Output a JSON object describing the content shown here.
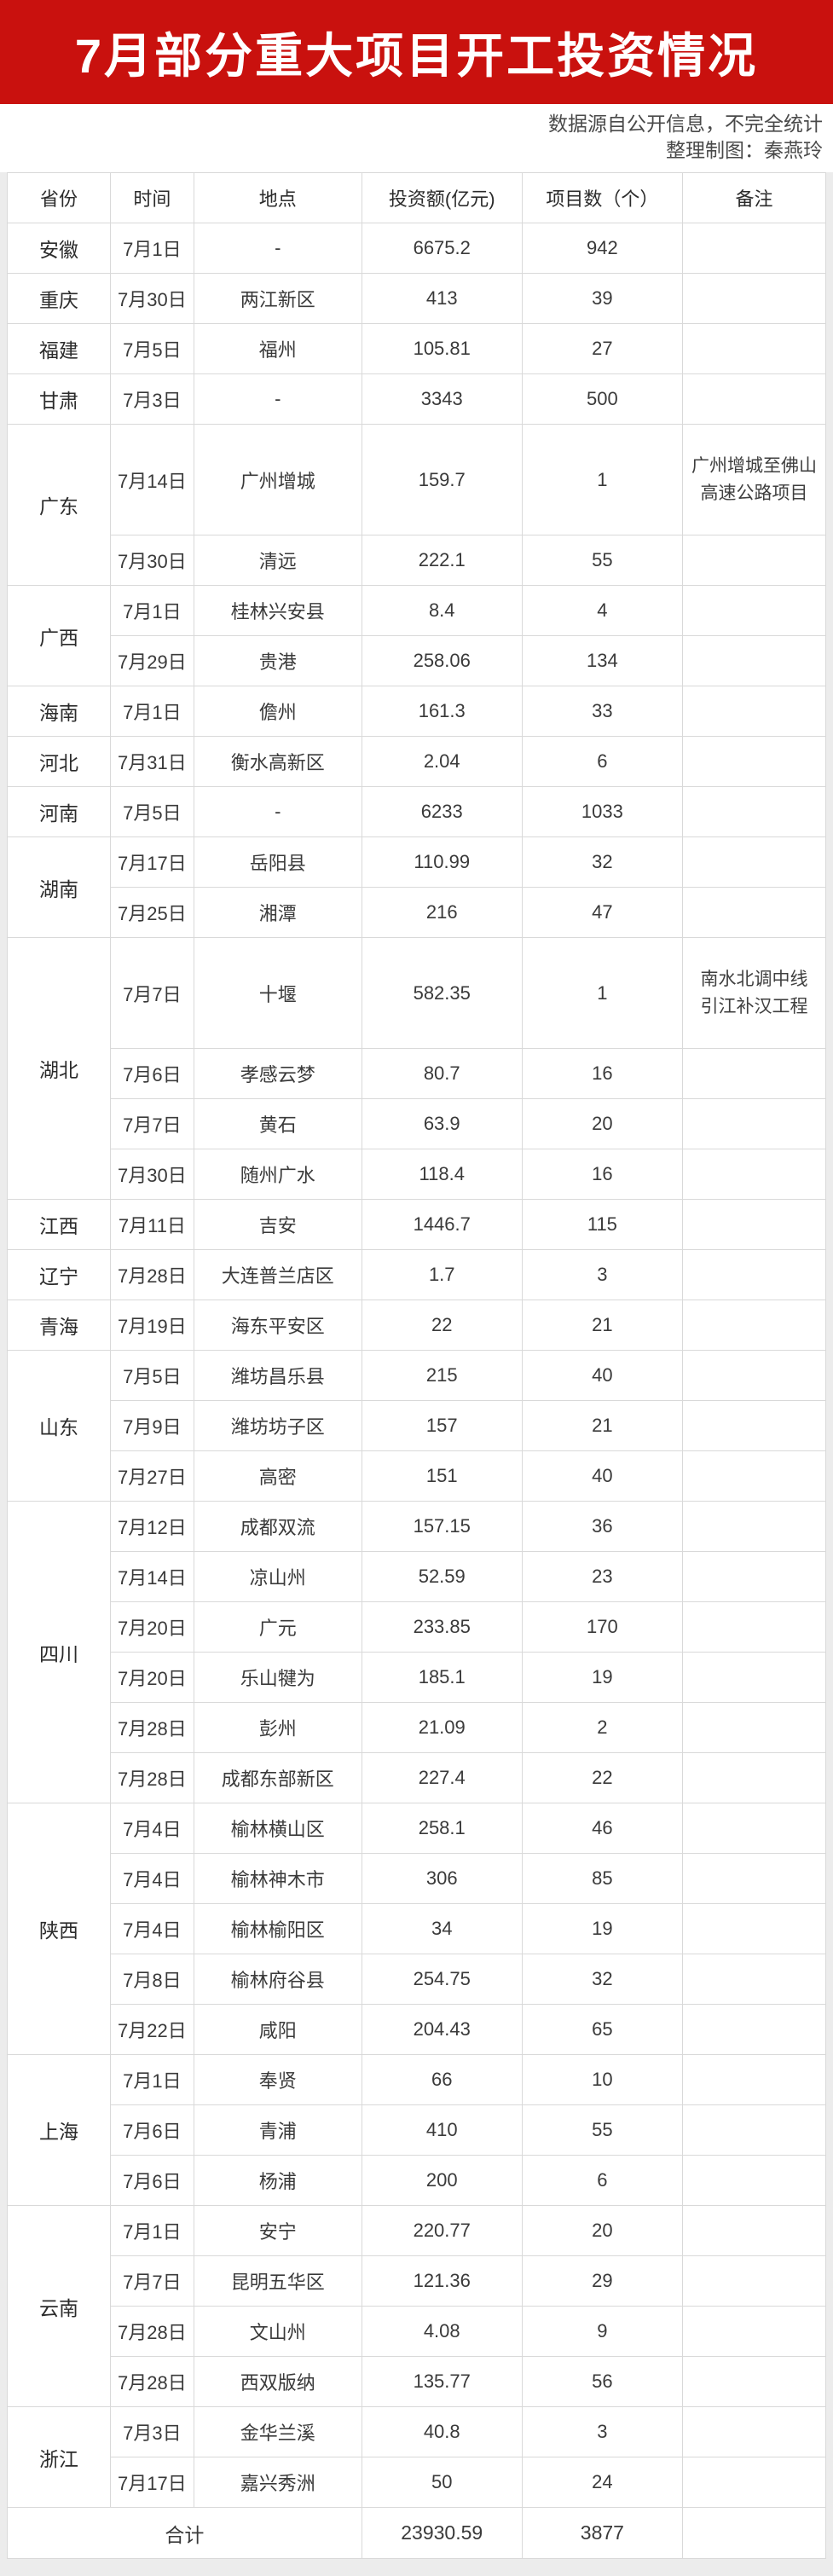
{
  "page": {
    "accent_red": "#c9110e",
    "page_background": "#ececec"
  },
  "banner": {
    "title": "7月部分重大项目开工投资情况"
  },
  "meta": {
    "source_note": "数据源自公开信息，不完全统计",
    "credit_note": "整理制图：秦燕玲"
  },
  "chart_data": {
    "type": "table",
    "title": "7月部分重大项目开工投资情况",
    "columns": [
      "省份",
      "时间",
      "地点",
      "投资额(亿元)",
      "项目数（个）",
      "备注"
    ],
    "groups": [
      {
        "province": "安徽",
        "rows": [
          {
            "date": "7月1日",
            "place": "-",
            "amount": "6675.2",
            "count": "942",
            "note": ""
          }
        ]
      },
      {
        "province": "重庆",
        "rows": [
          {
            "date": "7月30日",
            "place": "两江新区",
            "amount": "413",
            "count": "39",
            "note": ""
          }
        ]
      },
      {
        "province": "福建",
        "rows": [
          {
            "date": "7月5日",
            "place": "福州",
            "amount": "105.81",
            "count": "27",
            "note": ""
          }
        ]
      },
      {
        "province": "甘肃",
        "rows": [
          {
            "date": "7月3日",
            "place": "-",
            "amount": "3343",
            "count": "500",
            "note": ""
          }
        ]
      },
      {
        "province": "广东",
        "rows": [
          {
            "date": "7月14日",
            "place": "广州增城",
            "amount": "159.7",
            "count": "1",
            "note": "广州增城至佛山\n高速公路项目",
            "tall": true
          },
          {
            "date": "7月30日",
            "place": "清远",
            "amount": "222.1",
            "count": "55",
            "note": ""
          }
        ]
      },
      {
        "province": "广西",
        "rows": [
          {
            "date": "7月1日",
            "place": "桂林兴安县",
            "amount": "8.4",
            "count": "4",
            "note": ""
          },
          {
            "date": "7月29日",
            "place": "贵港",
            "amount": "258.06",
            "count": "134",
            "note": ""
          }
        ]
      },
      {
        "province": "海南",
        "rows": [
          {
            "date": "7月1日",
            "place": "儋州",
            "amount": "161.3",
            "count": "33",
            "note": ""
          }
        ]
      },
      {
        "province": "河北",
        "rows": [
          {
            "date": "7月31日",
            "place": "衡水高新区",
            "amount": "2.04",
            "count": "6",
            "note": ""
          }
        ]
      },
      {
        "province": "河南",
        "rows": [
          {
            "date": "7月5日",
            "place": "-",
            "amount": "6233",
            "count": "1033",
            "note": ""
          }
        ]
      },
      {
        "province": "湖南",
        "rows": [
          {
            "date": "7月17日",
            "place": "岳阳县",
            "amount": "110.99",
            "count": "32",
            "note": ""
          },
          {
            "date": "7月25日",
            "place": "湘潭",
            "amount": "216",
            "count": "47",
            "note": ""
          }
        ]
      },
      {
        "province": "湖北",
        "rows": [
          {
            "date": "7月7日",
            "place": "十堰",
            "amount": "582.35",
            "count": "1",
            "note": "南水北调中线\n引江补汉工程",
            "tall": true
          },
          {
            "date": "7月6日",
            "place": "孝感云梦",
            "amount": "80.7",
            "count": "16",
            "note": ""
          },
          {
            "date": "7月7日",
            "place": "黄石",
            "amount": "63.9",
            "count": "20",
            "note": ""
          },
          {
            "date": "7月30日",
            "place": "随州广水",
            "amount": "118.4",
            "count": "16",
            "note": ""
          }
        ]
      },
      {
        "province": "江西",
        "rows": [
          {
            "date": "7月11日",
            "place": "吉安",
            "amount": "1446.7",
            "count": "115",
            "note": ""
          }
        ]
      },
      {
        "province": "辽宁",
        "rows": [
          {
            "date": "7月28日",
            "place": "大连普兰店区",
            "amount": "1.7",
            "count": "3",
            "note": ""
          }
        ]
      },
      {
        "province": "青海",
        "rows": [
          {
            "date": "7月19日",
            "place": "海东平安区",
            "amount": "22",
            "count": "21",
            "note": ""
          }
        ]
      },
      {
        "province": "山东",
        "rows": [
          {
            "date": "7月5日",
            "place": "潍坊昌乐县",
            "amount": "215",
            "count": "40",
            "note": ""
          },
          {
            "date": "7月9日",
            "place": "潍坊坊子区",
            "amount": "157",
            "count": "21",
            "note": ""
          },
          {
            "date": "7月27日",
            "place": "高密",
            "amount": "151",
            "count": "40",
            "note": ""
          }
        ]
      },
      {
        "province": "四川",
        "rows": [
          {
            "date": "7月12日",
            "place": "成都双流",
            "amount": "157.15",
            "count": "36",
            "note": ""
          },
          {
            "date": "7月14日",
            "place": "凉山州",
            "amount": "52.59",
            "count": "23",
            "note": ""
          },
          {
            "date": "7月20日",
            "place": "广元",
            "amount": "233.85",
            "count": "170",
            "note": ""
          },
          {
            "date": "7月20日",
            "place": "乐山犍为",
            "amount": "185.1",
            "count": "19",
            "note": ""
          },
          {
            "date": "7月28日",
            "place": "彭州",
            "amount": "21.09",
            "count": "2",
            "note": ""
          },
          {
            "date": "7月28日",
            "place": "成都东部新区",
            "amount": "227.4",
            "count": "22",
            "note": ""
          }
        ]
      },
      {
        "province": "陕西",
        "rows": [
          {
            "date": "7月4日",
            "place": "榆林横山区",
            "amount": "258.1",
            "count": "46",
            "note": ""
          },
          {
            "date": "7月4日",
            "place": "榆林神木市",
            "amount": "306",
            "count": "85",
            "note": ""
          },
          {
            "date": "7月4日",
            "place": "榆林榆阳区",
            "amount": "34",
            "count": "19",
            "note": ""
          },
          {
            "date": "7月8日",
            "place": "榆林府谷县",
            "amount": "254.75",
            "count": "32",
            "note": ""
          },
          {
            "date": "7月22日",
            "place": "咸阳",
            "amount": "204.43",
            "count": "65",
            "note": ""
          }
        ]
      },
      {
        "province": "上海",
        "rows": [
          {
            "date": "7月1日",
            "place": "奉贤",
            "amount": "66",
            "count": "10",
            "note": ""
          },
          {
            "date": "7月6日",
            "place": "青浦",
            "amount": "410",
            "count": "55",
            "note": ""
          },
          {
            "date": "7月6日",
            "place": "杨浦",
            "amount": "200",
            "count": "6",
            "note": ""
          }
        ]
      },
      {
        "province": "云南",
        "rows": [
          {
            "date": "7月1日",
            "place": "安宁",
            "amount": "220.77",
            "count": "20",
            "note": ""
          },
          {
            "date": "7月7日",
            "place": "昆明五华区",
            "amount": "121.36",
            "count": "29",
            "note": ""
          },
          {
            "date": "7月28日",
            "place": "文山州",
            "amount": "4.08",
            "count": "9",
            "note": ""
          },
          {
            "date": "7月28日",
            "place": "西双版纳",
            "amount": "135.77",
            "count": "56",
            "note": ""
          }
        ]
      },
      {
        "province": "浙江",
        "rows": [
          {
            "date": "7月3日",
            "place": "金华兰溪",
            "amount": "40.8",
            "count": "3",
            "note": ""
          },
          {
            "date": "7月17日",
            "place": "嘉兴秀洲",
            "amount": "50",
            "count": "24",
            "note": ""
          }
        ]
      }
    ],
    "total_row": {
      "label": "合计",
      "amount": "23930.59",
      "count": "3877",
      "note": ""
    }
  }
}
